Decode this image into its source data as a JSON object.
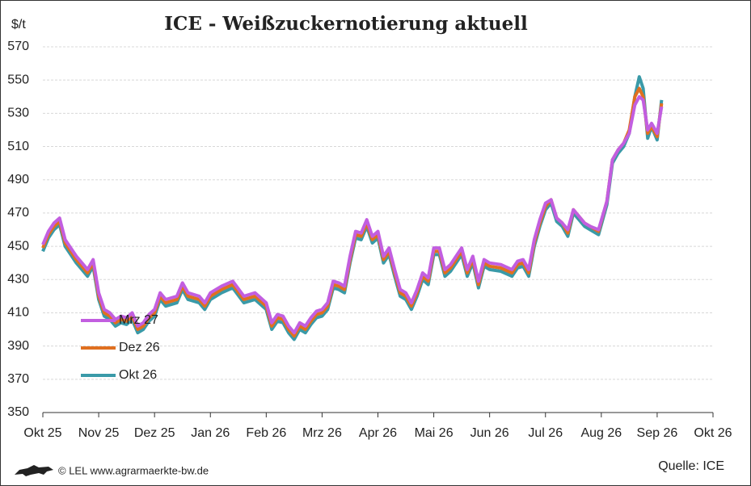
{
  "chart_data": {
    "type": "line",
    "title": "ICE - Weißzuckernotierung aktuell",
    "y_label": "$/t",
    "source": "Quelle: ICE",
    "credit": "© LEL www.agrarmaerkte-bw.de",
    "grid": true,
    "legend": "left",
    "xlim": [
      0,
      12
    ],
    "xticks": [
      {
        "value": 0,
        "label": "Okt 25"
      },
      {
        "value": 1,
        "label": "Nov 25"
      },
      {
        "value": 2,
        "label": "Dez 25"
      },
      {
        "value": 3,
        "label": "Jan 26"
      },
      {
        "value": 4,
        "label": "Feb 26"
      },
      {
        "value": 5,
        "label": "Mrz 26"
      },
      {
        "value": 6,
        "label": "Apr 26"
      },
      {
        "value": 7,
        "label": "Mai 26"
      },
      {
        "value": 8,
        "label": "Jun 26"
      },
      {
        "value": 9,
        "label": "Jul 26"
      },
      {
        "value": 10,
        "label": "Aug 26"
      },
      {
        "value": 11,
        "label": "Sep 26"
      },
      {
        "value": 12,
        "label": "Okt 26"
      }
    ],
    "ylim": [
      350,
      570
    ],
    "yticks": [
      350,
      370,
      390,
      410,
      430,
      450,
      470,
      490,
      510,
      530,
      550,
      570
    ],
    "x": [
      0,
      0.1,
      0.2,
      0.3,
      0.4,
      0.5,
      0.6,
      0.7,
      0.8,
      0.9,
      1.0,
      1.1,
      1.2,
      1.3,
      1.4,
      1.5,
      1.6,
      1.7,
      1.8,
      1.9,
      2.0,
      2.1,
      2.2,
      2.4,
      2.5,
      2.6,
      2.8,
      2.9,
      3.0,
      3.2,
      3.4,
      3.6,
      3.8,
      4.0,
      4.1,
      4.2,
      4.3,
      4.4,
      4.5,
      4.6,
      4.7,
      4.8,
      4.9,
      5.0,
      5.1,
      5.2,
      5.3,
      5.4,
      5.5,
      5.6,
      5.7,
      5.8,
      5.9,
      6.0,
      6.1,
      6.2,
      6.3,
      6.4,
      6.5,
      6.6,
      6.7,
      6.8,
      6.9,
      7.0,
      7.1,
      7.2,
      7.3,
      7.4,
      7.5,
      7.6,
      7.7,
      7.8,
      7.9,
      8.0,
      8.2,
      8.4,
      8.5,
      8.6,
      8.7,
      8.8,
      8.9,
      9.0,
      9.1,
      9.2,
      9.3,
      9.4,
      9.5,
      9.6,
      9.7,
      9.8,
      9.95,
      10.1,
      10.2,
      10.3,
      10.4,
      10.5,
      10.6,
      10.68,
      10.75,
      10.83,
      10.9,
      11.0,
      11.08
    ],
    "series": [
      {
        "name": "Mrz 27",
        "color": "#c25ee0",
        "values": [
          451,
          459,
          464,
          467,
          454,
          449,
          444,
          440,
          436,
          442,
          422,
          412,
          410,
          406,
          408,
          407,
          410,
          402,
          404,
          409,
          412,
          422,
          418,
          420,
          428,
          422,
          420,
          416,
          422,
          426,
          429,
          420,
          422,
          416,
          404,
          409,
          408,
          402,
          398,
          404,
          402,
          407,
          411,
          412,
          416,
          429,
          428,
          426,
          444,
          459,
          458,
          466,
          456,
          459,
          444,
          449,
          436,
          424,
          422,
          416,
          424,
          434,
          431,
          449,
          449,
          436,
          439,
          444,
          449,
          436,
          444,
          429,
          442,
          440,
          439,
          436,
          441,
          442,
          436,
          454,
          466,
          476,
          478,
          467,
          464,
          460,
          472,
          468,
          464,
          462,
          460,
          477,
          502,
          508,
          512,
          518,
          535,
          540,
          538,
          520,
          524,
          518,
          534
        ]
      },
      {
        "name": "Dez 26",
        "color": "#e07020",
        "values": [
          449,
          457,
          462,
          465,
          452,
          447,
          442,
          438,
          434,
          440,
          420,
          410,
          408,
          404,
          406,
          405,
          408,
          400,
          402,
          407,
          410,
          420,
          416,
          418,
          426,
          420,
          418,
          414,
          420,
          424,
          427,
          418,
          420,
          414,
          402,
          407,
          406,
          400,
          396,
          402,
          400,
          405,
          409,
          410,
          414,
          427,
          426,
          424,
          442,
          457,
          456,
          464,
          454,
          457,
          442,
          447,
          434,
          422,
          420,
          414,
          422,
          432,
          429,
          447,
          447,
          434,
          437,
          442,
          447,
          434,
          442,
          427,
          440,
          438,
          437,
          434,
          439,
          440,
          434,
          452,
          464,
          474,
          478,
          467,
          464,
          458,
          472,
          468,
          464,
          462,
          459,
          477,
          502,
          508,
          512,
          520,
          540,
          545,
          540,
          518,
          522,
          516,
          536
        ]
      },
      {
        "name": "Okt 26",
        "color": "#3a9aa8",
        "values": [
          447,
          455,
          460,
          463,
          450,
          445,
          440,
          436,
          432,
          438,
          418,
          408,
          406,
          402,
          404,
          403,
          406,
          398,
          400,
          405,
          408,
          418,
          414,
          416,
          424,
          418,
          416,
          412,
          418,
          422,
          425,
          416,
          418,
          412,
          400,
          405,
          404,
          398,
          394,
          400,
          398,
          403,
          407,
          408,
          412,
          425,
          424,
          422,
          440,
          455,
          454,
          462,
          452,
          455,
          440,
          445,
          432,
          420,
          418,
          412,
          420,
          430,
          427,
          445,
          445,
          432,
          435,
          440,
          445,
          432,
          440,
          425,
          438,
          436,
          435,
          432,
          437,
          438,
          432,
          450,
          462,
          472,
          476,
          465,
          462,
          456,
          470,
          466,
          462,
          460,
          457,
          475,
          500,
          506,
          510,
          518,
          540,
          552,
          545,
          515,
          522,
          514,
          538
        ]
      }
    ]
  }
}
